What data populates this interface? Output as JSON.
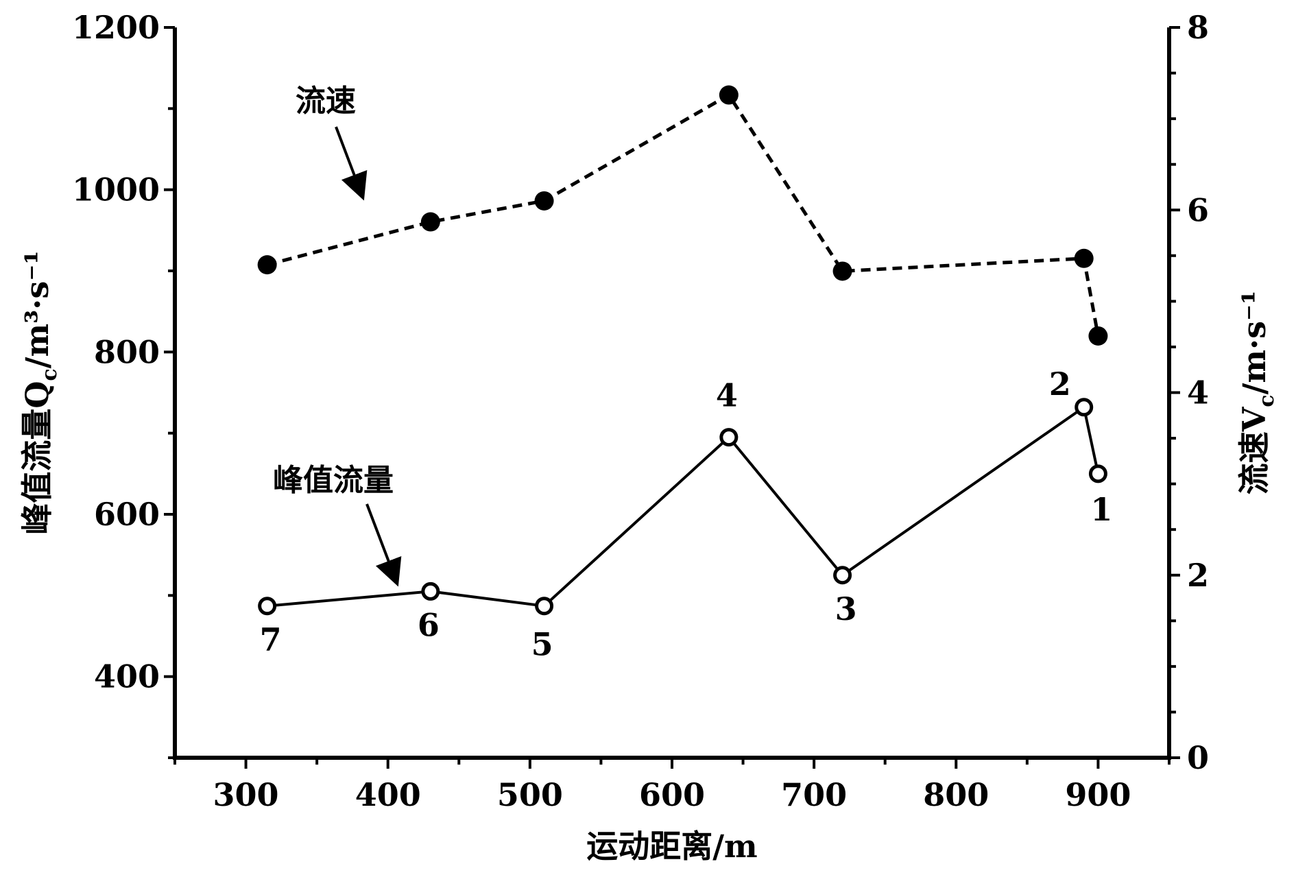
{
  "chart_data": {
    "type": "line",
    "xlabel": "运动距离/m",
    "ylabel_left": "峰值流量Q",
    "ylabel_left_sub": "c",
    "ylabel_left_unit": "/m³·s⁻¹",
    "ylabel_right": "流速V",
    "ylabel_right_sub": "c",
    "ylabel_right_unit": "/m·s⁻¹",
    "xlim": [
      250,
      950
    ],
    "ylim_left": [
      300,
      1200
    ],
    "ylim_right": [
      0,
      8
    ],
    "x_ticks": [
      300,
      400,
      500,
      600,
      700,
      800,
      900
    ],
    "y_left_ticks": [
      400,
      600,
      800,
      1000,
      1200
    ],
    "y_right_ticks": [
      0,
      2,
      4,
      6,
      8
    ],
    "grid": false,
    "series": [
      {
        "name": "峰值流量",
        "axis": "left",
        "style": "solid",
        "marker": "open-circle",
        "x": [
          315,
          430,
          510,
          640,
          720,
          890,
          900
        ],
        "y": [
          487,
          505,
          487,
          695,
          525,
          732,
          650
        ],
        "point_labels": [
          "7",
          "6",
          "5",
          "4",
          "3",
          "2",
          "1"
        ]
      },
      {
        "name": "流速",
        "axis": "right",
        "style": "dashed",
        "marker": "filled-circle",
        "x": [
          315,
          430,
          510,
          640,
          720,
          890,
          900
        ],
        "y": [
          5.4,
          5.87,
          6.1,
          7.26,
          5.33,
          5.47,
          4.62
        ]
      }
    ],
    "annotations": [
      {
        "text": "流速",
        "target_series": "流速"
      },
      {
        "text": "峰值流量",
        "target_series": "峰值流量"
      }
    ]
  }
}
